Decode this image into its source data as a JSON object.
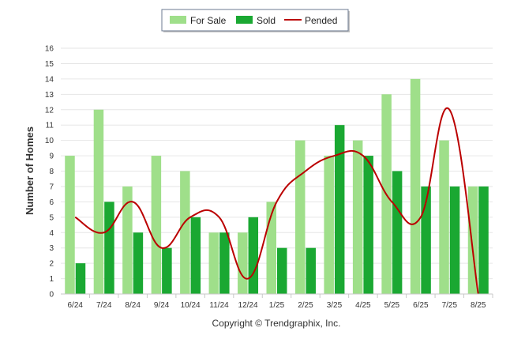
{
  "chart_data": {
    "type": "bar",
    "categories": [
      "6/24",
      "7/24",
      "8/24",
      "9/24",
      "10/24",
      "11/24",
      "12/24",
      "1/25",
      "2/25",
      "3/25",
      "4/25",
      "5/25",
      "6/25",
      "7/25",
      "8/25"
    ],
    "series": [
      {
        "name": "For Sale",
        "type": "bar",
        "color": "#9fdf8a",
        "values": [
          9,
          12,
          7,
          9,
          8,
          4,
          4,
          6,
          10,
          9,
          10,
          13,
          14,
          10,
          7
        ]
      },
      {
        "name": "Sold",
        "type": "bar",
        "color": "#1aa832",
        "values": [
          2,
          6,
          4,
          3,
          5,
          4,
          5,
          3,
          3,
          11,
          9,
          8,
          7,
          7,
          7
        ]
      },
      {
        "name": "Pended",
        "type": "line",
        "color": "#bb0000",
        "values": [
          5,
          4,
          6,
          3,
          5,
          5,
          1,
          6,
          8,
          9,
          9,
          6,
          5,
          12,
          0
        ]
      }
    ],
    "title": "",
    "xlabel": "",
    "ylabel": "Number of Homes",
    "ylim": [
      0,
      16
    ],
    "yticks": [
      "0",
      "1",
      "2",
      "3",
      "4",
      "5",
      "6",
      "7",
      "8",
      "9",
      "10",
      "11",
      "12",
      "13",
      "14",
      "15",
      "16"
    ],
    "grid": true,
    "legend_position": "top-center"
  },
  "legend": {
    "for_sale": "For Sale",
    "sold": "Sold",
    "pended": "Pended"
  },
  "credit": "Copyright © Trendgraphix, Inc."
}
